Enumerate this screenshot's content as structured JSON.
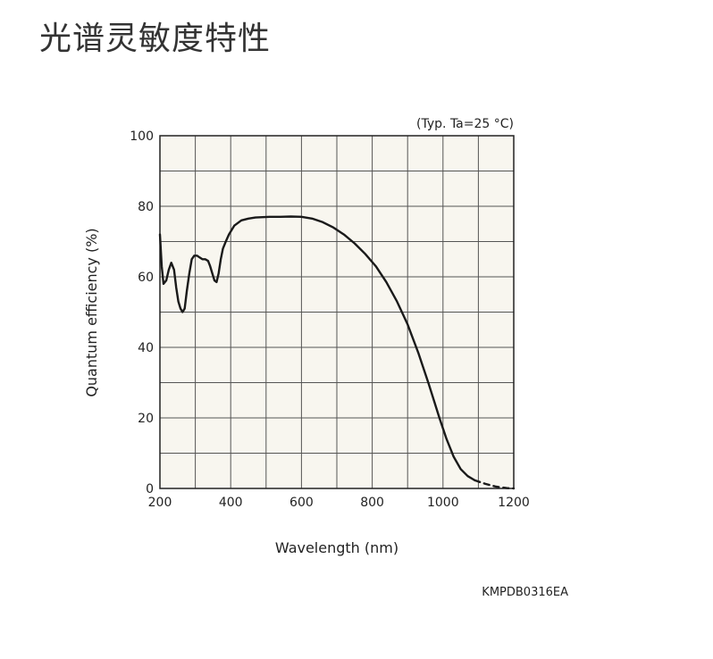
{
  "page": {
    "title": "光谱灵敏度特性"
  },
  "chart_data": {
    "type": "line",
    "title": "",
    "condition": "(Typ. Ta=25 °C)",
    "xlabel": "Wavelength (nm)",
    "ylabel": "Quantum efficiency (%)",
    "xlim": [
      200,
      1200
    ],
    "ylim": [
      0,
      100
    ],
    "xticks": [
      200,
      400,
      600,
      800,
      1000,
      1200
    ],
    "yticks": [
      0,
      20,
      40,
      60,
      80,
      100
    ],
    "x_minor_step": 100,
    "y_minor_step": 10,
    "grid": true,
    "code": "KMPDB0316EA",
    "colors": {
      "line": "#1a1a1a",
      "grid": "#555555",
      "plot_bg": "#f8f6ef"
    },
    "series": [
      {
        "x": [
          200,
          205,
          210,
          218,
          225,
          232,
          240,
          246,
          252,
          258,
          264,
          270,
          276,
          283,
          290,
          297,
          305,
          312,
          320,
          328,
          336,
          342,
          348,
          354,
          360,
          366,
          372,
          378,
          386,
          395,
          410,
          430,
          450,
          470,
          490,
          510,
          540,
          570,
          600,
          630,
          660,
          690,
          720,
          750,
          780,
          810,
          840,
          870,
          900,
          930,
          960,
          990,
          1010,
          1030,
          1050,
          1070,
          1090
        ],
        "y": [
          72,
          63,
          58,
          59,
          62,
          64,
          62,
          57,
          53,
          51,
          50,
          51,
          56,
          61,
          65,
          66,
          66,
          65.5,
          65,
          65,
          64.5,
          63,
          61,
          59,
          58.5,
          61,
          65,
          68,
          70,
          72,
          74.5,
          76,
          76.5,
          76.8,
          76.9,
          77,
          77,
          77.1,
          77,
          76.5,
          75.5,
          74,
          72,
          69.5,
          66.5,
          63,
          58.5,
          53,
          46.5,
          38.5,
          29.5,
          20,
          14,
          9,
          5.5,
          3.5,
          2.3
        ],
        "style": "solid"
      },
      {
        "x": [
          1090,
          1120,
          1150,
          1180,
          1200
        ],
        "y": [
          2.3,
          1.3,
          0.5,
          0.1,
          0
        ],
        "style": "dashed"
      }
    ]
  }
}
